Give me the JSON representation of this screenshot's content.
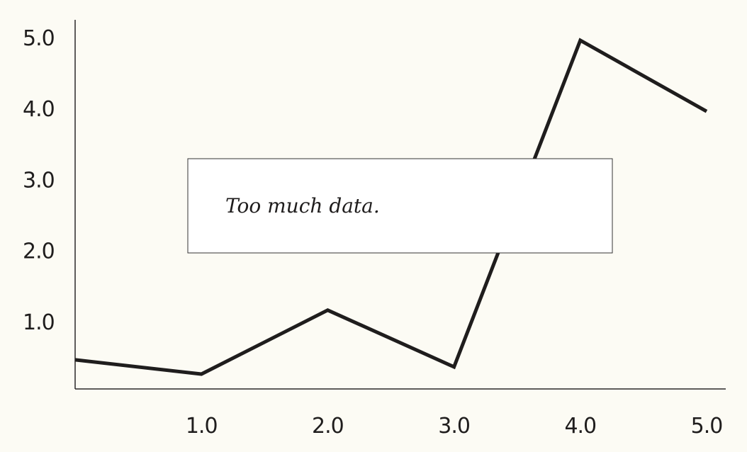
{
  "chart_data": {
    "type": "line",
    "title": "",
    "xlabel": "",
    "ylabel": "",
    "x": [
      0.0,
      1.0,
      2.0,
      3.0,
      4.0,
      5.0
    ],
    "series": [
      {
        "values": [
          0.45,
          0.25,
          1.15,
          0.35,
          4.95,
          3.95
        ]
      }
    ],
    "xlim": [
      0,
      5.0
    ],
    "ylim": [
      0,
      5.0
    ],
    "x_ticks": [
      "1.0",
      "2.0",
      "3.0",
      "4.0",
      "5.0"
    ],
    "y_ticks": [
      "1.0",
      "2.0",
      "3.0",
      "4.0",
      "5.0"
    ],
    "grid": false,
    "legend": "none",
    "line_color": "#1f1d1d",
    "background_color": "#fcfbf4",
    "annotation": {
      "text": "Too much data."
    }
  }
}
